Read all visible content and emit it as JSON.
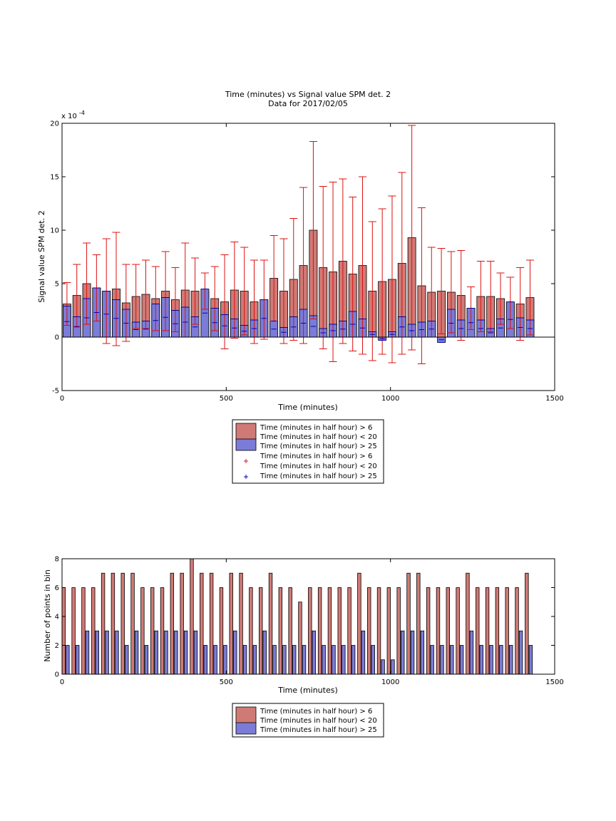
{
  "chart_data": [
    {
      "type": "bar",
      "title": "Time (minutes) vs Signal value SPM det. 2",
      "subtitle": "Data for 2017/02/05",
      "xlabel": "Time (minutes)",
      "ylabel": "Signal value SPM det. 2",
      "exponent_label": "x 10",
      "exponent_power": "-4",
      "xlim": [
        0,
        1500
      ],
      "ylim": [
        -5,
        20
      ],
      "xticks": [
        "0",
        "500",
        "1000",
        "1500"
      ],
      "yticks": [
        "-5",
        "0",
        "5",
        "10",
        "15",
        "20"
      ],
      "grid": false,
      "legend_position": "below",
      "legend": [
        {
          "line1": "Time (minutes in half hour) > 6",
          "line2": "Time (minutes in half hour) < 20",
          "kind": "bar",
          "color": "#d07a76"
        },
        {
          "line1": "Time (minutes in half hour) > 25",
          "line2": "",
          "kind": "bar",
          "color": "#7b7bd8"
        },
        {
          "line1": "Time (minutes in half hour) > 6",
          "line2": "Time (minutes in half hour) < 20",
          "kind": "errorbar",
          "color": "#dd1111"
        },
        {
          "line1": "Time (minutes in half hour) > 25",
          "line2": "",
          "kind": "errorbar",
          "color": "#0000bb"
        }
      ],
      "series": [
        {
          "color": "#d07a76",
          "err_color": "#dd1111",
          "x": [
            15,
            45,
            75,
            105,
            135,
            165,
            195,
            225,
            255,
            285,
            315,
            345,
            375,
            405,
            435,
            465,
            495,
            525,
            555,
            585,
            615,
            645,
            675,
            705,
            735,
            765,
            795,
            825,
            855,
            885,
            915,
            945,
            975,
            1005,
            1035,
            1065,
            1095,
            1125,
            1155,
            1185,
            1215,
            1245,
            1275,
            1305,
            1335,
            1365,
            1395,
            1425
          ],
          "values": [
            3.1,
            3.9,
            5.0,
            4.6,
            4.3,
            4.5,
            3.2,
            3.8,
            4.0,
            3.6,
            4.3,
            3.5,
            4.4,
            4.3,
            4.3,
            3.6,
            3.3,
            4.4,
            4.3,
            3.3,
            3.5,
            5.5,
            4.3,
            5.4,
            6.7,
            10.0,
            6.5,
            6.1,
            7.1,
            5.9,
            6.7,
            4.3,
            5.2,
            5.4,
            6.9,
            9.3,
            4.8,
            4.2,
            4.3,
            4.2,
            3.9,
            2.7,
            3.8,
            3.8,
            3.6,
            3.2,
            3.1,
            3.7
          ],
          "err": [
            2.0,
            2.9,
            3.8,
            3.1,
            4.9,
            5.3,
            3.6,
            3.0,
            3.2,
            3.0,
            3.7,
            3.0,
            4.4,
            3.1,
            1.7,
            3.0,
            4.4,
            4.5,
            4.1,
            3.9,
            3.7,
            4.0,
            4.9,
            5.7,
            7.3,
            8.3,
            7.6,
            8.4,
            7.7,
            7.2,
            8.3,
            6.5,
            6.8,
            7.8,
            8.5,
            10.5,
            7.3,
            4.2,
            4.0,
            3.8,
            4.2,
            2.0,
            3.3,
            3.3,
            2.4,
            2.4,
            3.4,
            3.5
          ]
        },
        {
          "color": "#7b7bd8",
          "err_color": "#0000bb",
          "x": [
            15,
            45,
            75,
            105,
            135,
            165,
            195,
            225,
            255,
            285,
            315,
            345,
            375,
            405,
            435,
            465,
            495,
            525,
            555,
            585,
            615,
            645,
            675,
            705,
            735,
            765,
            795,
            825,
            855,
            885,
            915,
            945,
            975,
            1005,
            1035,
            1065,
            1095,
            1125,
            1155,
            1185,
            1215,
            1245,
            1275,
            1305,
            1335,
            1365,
            1395,
            1425
          ],
          "values": [
            2.9,
            1.9,
            3.6,
            4.6,
            4.3,
            3.5,
            2.6,
            1.4,
            1.5,
            3.1,
            3.7,
            2.5,
            2.8,
            1.9,
            4.5,
            2.7,
            2.1,
            1.7,
            1.1,
            1.6,
            3.5,
            1.5,
            0.9,
            1.9,
            2.6,
            2.0,
            0.8,
            1.2,
            1.5,
            2.4,
            1.7,
            0.5,
            -0.3,
            0.5,
            1.9,
            1.2,
            1.4,
            1.5,
            -0.5,
            2.6,
            1.6,
            2.7,
            1.6,
            0.8,
            1.7,
            3.3,
            1.8,
            1.6
          ]
        }
      ]
    },
    {
      "type": "bar",
      "xlabel": "Time (minutes)",
      "ylabel": "Number of points in bin",
      "xlim": [
        0,
        1500
      ],
      "ylim": [
        0,
        8
      ],
      "xticks": [
        "0",
        "500",
        "1000",
        "1500"
      ],
      "yticks": [
        "0",
        "2",
        "4",
        "6",
        "8"
      ],
      "grid": false,
      "legend_position": "below",
      "legend": [
        {
          "line1": "Time (minutes in half hour) > 6",
          "line2": "Time (minutes in half hour) < 20",
          "kind": "bar",
          "color": "#d07a76"
        },
        {
          "line1": "Time (minutes in half hour) > 25",
          "line2": "",
          "kind": "bar",
          "color": "#7b7bd8"
        }
      ],
      "series": [
        {
          "color": "#d07a76",
          "x": [
            5,
            35,
            65,
            95,
            125,
            155,
            185,
            215,
            245,
            275,
            305,
            335,
            365,
            395,
            425,
            455,
            485,
            515,
            545,
            575,
            605,
            635,
            665,
            695,
            725,
            755,
            785,
            815,
            845,
            875,
            905,
            935,
            965,
            995,
            1025,
            1055,
            1085,
            1115,
            1145,
            1175,
            1205,
            1235,
            1265,
            1295,
            1325,
            1355,
            1385,
            1415
          ],
          "values": [
            6,
            6,
            6,
            6,
            7,
            7,
            7,
            7,
            6,
            6,
            6,
            7,
            7,
            8,
            7,
            7,
            6,
            7,
            7,
            6,
            6,
            7,
            6,
            6,
            5,
            6,
            6,
            6,
            6,
            6,
            7,
            6,
            6,
            6,
            6,
            7,
            7,
            6,
            6,
            6,
            6,
            7,
            6,
            6,
            6,
            6,
            6,
            7
          ]
        },
        {
          "color": "#7b7bd8",
          "x": [
            17,
            47,
            77,
            107,
            137,
            167,
            197,
            227,
            257,
            287,
            317,
            347,
            377,
            407,
            437,
            467,
            497,
            527,
            557,
            587,
            617,
            647,
            677,
            707,
            737,
            767,
            797,
            827,
            857,
            887,
            917,
            947,
            977,
            1007,
            1037,
            1067,
            1097,
            1127,
            1157,
            1187,
            1217,
            1247,
            1277,
            1307,
            1337,
            1367,
            1397,
            1427
          ],
          "values": [
            2,
            2,
            3,
            3,
            3,
            3,
            2,
            3,
            2,
            3,
            3,
            3,
            3,
            3,
            2,
            2,
            2,
            3,
            2,
            2,
            3,
            2,
            2,
            2,
            2,
            3,
            2,
            2,
            2,
            2,
            3,
            2,
            1,
            1,
            3,
            3,
            3,
            2,
            2,
            2,
            2,
            3,
            2,
            2,
            2,
            2,
            3,
            2
          ]
        }
      ]
    }
  ]
}
